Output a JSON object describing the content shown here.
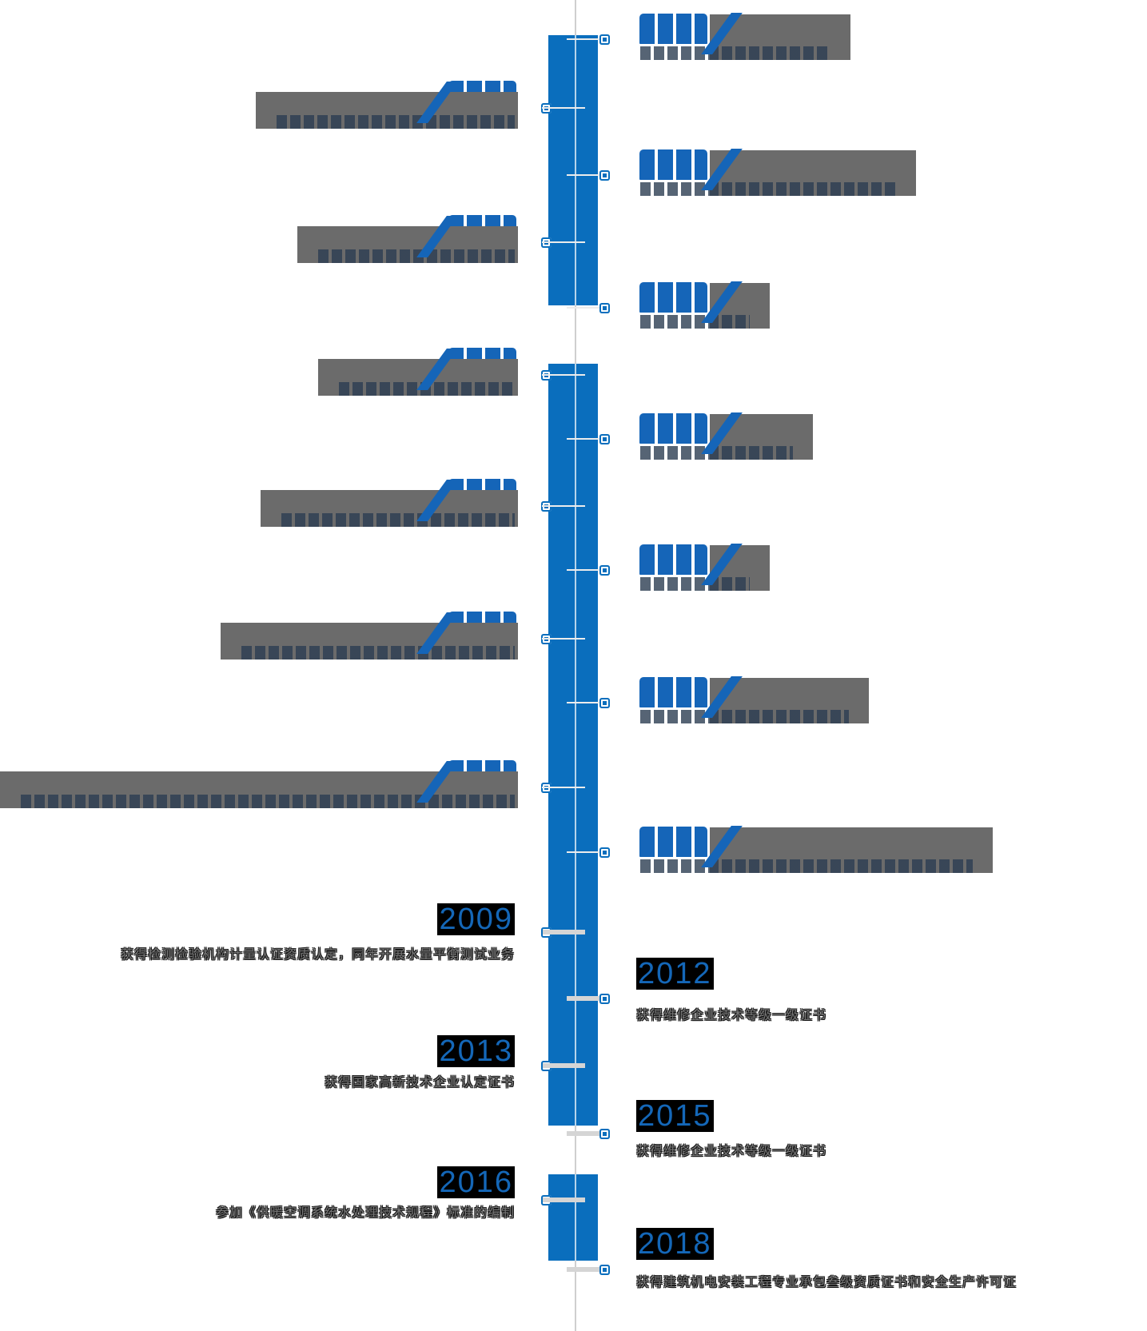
{
  "page": {
    "background": "#ffffff",
    "kind": "company-development-history vertical timeline"
  },
  "timeline": {
    "colors": {
      "column_blue": "#0a6ebd",
      "year_blue": "#1467b8",
      "year_highlight_background": "#000000",
      "redaction_gray": "#6b6b6b",
      "description_gray": "#767676",
      "center_line_gray": "#cfcfcf",
      "connector_gray": "#d5d5d5"
    },
    "covered_entries": [
      {
        "side": "right"
      },
      {
        "side": "left"
      },
      {
        "side": "right"
      },
      {
        "side": "left"
      },
      {
        "side": "right"
      },
      {
        "side": "left"
      },
      {
        "side": "right"
      },
      {
        "side": "left"
      },
      {
        "side": "right"
      },
      {
        "side": "left"
      },
      {
        "side": "right"
      },
      {
        "side": "left"
      },
      {
        "side": "right"
      }
    ],
    "milestones": [
      {
        "year": "2009",
        "side": "left",
        "description": "获得检测检验机构计量认证资质认定，同年开展水量平衡测试业务"
      },
      {
        "year": "2012",
        "side": "right",
        "description": "获得维修企业技术等级一级证书"
      },
      {
        "year": "2013",
        "side": "left",
        "description": "获得国家高新技术企业认定证书"
      },
      {
        "year": "2015",
        "side": "right",
        "description": "获得维修企业技术等级一级证书"
      },
      {
        "year": "2016",
        "side": "left",
        "description": "参加《供暖空调系统水处理技术规程》标准的编制"
      },
      {
        "year": "2018",
        "side": "right",
        "description": "获得建筑机电安装工程专业承包叁级资质证书和安全生产许可证"
      }
    ]
  }
}
